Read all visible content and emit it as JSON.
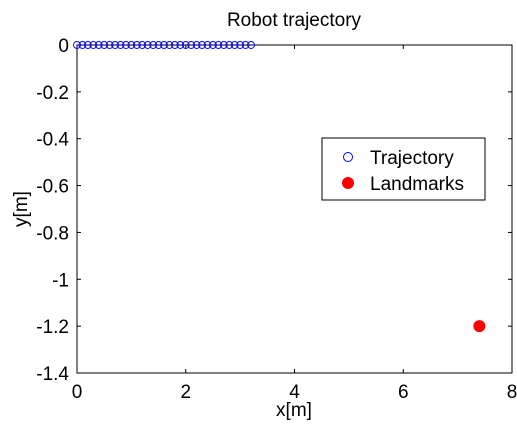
{
  "chart_data": {
    "type": "scatter",
    "title": "Robot trajectory",
    "xlabel": "x[m]",
    "ylabel": "y[m]",
    "xlim": [
      0,
      8
    ],
    "ylim": [
      -1.4,
      0
    ],
    "xticks": [
      0,
      2,
      4,
      6,
      8
    ],
    "xtick_labels": [
      "0",
      "2",
      "4",
      "6",
      "8"
    ],
    "yticks": [
      0,
      -0.2,
      -0.4,
      -0.6,
      -0.8,
      -1,
      -1.2,
      -1.4
    ],
    "ytick_labels": [
      "0",
      "-0.2",
      "-0.4",
      "-0.6",
      "-0.8",
      "-1",
      "-1.2",
      "-1.4"
    ],
    "grid": false,
    "legend_position": "right",
    "series": [
      {
        "name": "Trajectory",
        "marker": "open-circle",
        "color": "#0000ff",
        "x": [
          0,
          0.1,
          0.2,
          0.3,
          0.4,
          0.5,
          0.6,
          0.7,
          0.8,
          0.9,
          1.0,
          1.1,
          1.2,
          1.3,
          1.4,
          1.5,
          1.6,
          1.7,
          1.8,
          1.9,
          2.0,
          2.1,
          2.2,
          2.3,
          2.4,
          2.5,
          2.6,
          2.7,
          2.8,
          2.9,
          3.0,
          3.1,
          3.2
        ],
        "y": [
          0,
          0,
          0,
          0,
          0,
          0,
          0,
          0,
          0,
          0,
          0,
          0,
          0,
          0,
          0,
          0,
          0,
          0,
          0,
          0,
          0,
          0,
          0,
          0,
          0,
          0,
          0,
          0,
          0,
          0,
          0,
          0,
          0
        ]
      },
      {
        "name": "Landmarks",
        "marker": "filled-circle",
        "color": "#ff0000",
        "x": [
          7.4
        ],
        "y": [
          -1.2
        ]
      }
    ]
  }
}
